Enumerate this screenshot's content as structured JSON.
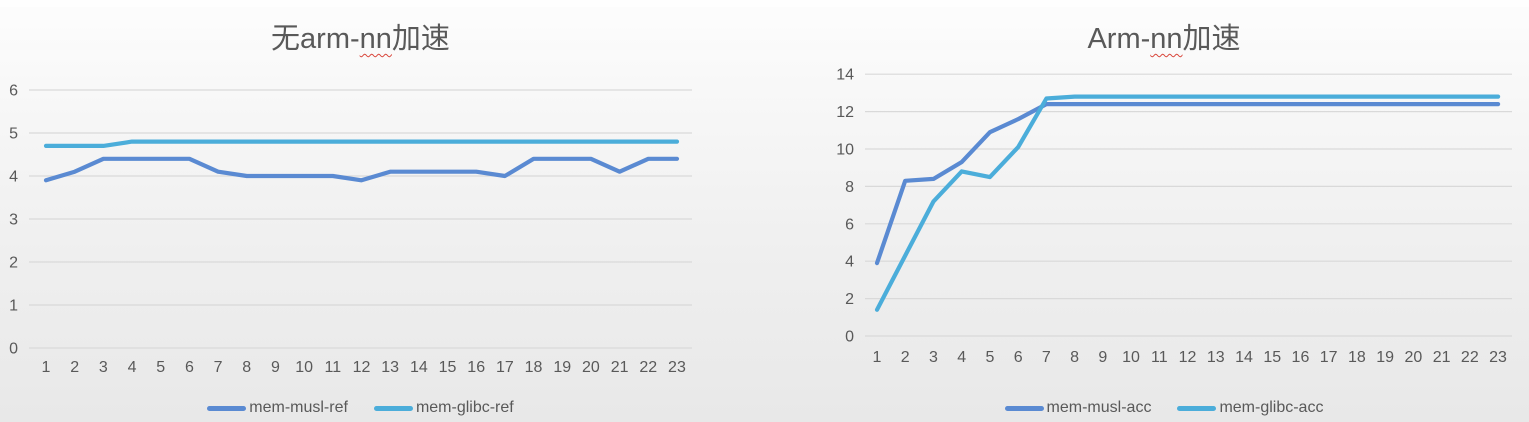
{
  "background": {
    "gradient_top": "#fdfdfd",
    "gradient_bottom": "#e8e8e8"
  },
  "text_color": "#595959",
  "grid_color": "#d9d9d9",
  "spellcheck_underline_color": "#d9453a",
  "chart_data": [
    {
      "type": "line",
      "title": "无arm-nn加速",
      "title_parts": {
        "prefix": "无arm-",
        "misspelled": "nn",
        "suffix": "加速"
      },
      "x_labels": [
        "1",
        "2",
        "3",
        "4",
        "5",
        "6",
        "7",
        "8",
        "9",
        "10",
        "11",
        "12",
        "13",
        "14",
        "15",
        "16",
        "17",
        "18",
        "19",
        "20",
        "21",
        "22",
        "23"
      ],
      "xlabel": "",
      "ylabel": "",
      "ylim": [
        0,
        6
      ],
      "ytick_step": 1,
      "ytick_labels": [
        "0",
        "1",
        "2",
        "3",
        "4",
        "5",
        "6"
      ],
      "grid": true,
      "legend_position": "bottom",
      "series": [
        {
          "name": "mem-musl-ref",
          "color": "#5a8ad2",
          "values": [
            3.9,
            4.1,
            4.4,
            4.4,
            4.4,
            4.4,
            4.1,
            4.0,
            4.0,
            4.0,
            4.0,
            3.9,
            4.1,
            4.1,
            4.1,
            4.1,
            4.0,
            4.4,
            4.4,
            4.4,
            4.1,
            4.4,
            4.4
          ]
        },
        {
          "name": "mem-glibc-ref",
          "color": "#4badda",
          "values": [
            4.7,
            4.7,
            4.7,
            4.8,
            4.8,
            4.8,
            4.8,
            4.8,
            4.8,
            4.8,
            4.8,
            4.8,
            4.8,
            4.8,
            4.8,
            4.8,
            4.8,
            4.8,
            4.8,
            4.8,
            4.8,
            4.8,
            4.8
          ]
        }
      ]
    },
    {
      "type": "line",
      "title": "Arm-nn加速",
      "title_parts": {
        "prefix": "Arm-",
        "misspelled": "nn",
        "suffix": "加速"
      },
      "x_labels": [
        "1",
        "2",
        "3",
        "4",
        "5",
        "6",
        "7",
        "8",
        "9",
        "10",
        "11",
        "12",
        "13",
        "14",
        "15",
        "16",
        "17",
        "18",
        "19",
        "20",
        "21",
        "22",
        "23"
      ],
      "xlabel": "",
      "ylabel": "",
      "ylim": [
        0,
        14
      ],
      "ytick_step": 2,
      "ytick_labels": [
        "0",
        "2",
        "4",
        "6",
        "8",
        "10",
        "12",
        "14"
      ],
      "grid": true,
      "legend_position": "bottom",
      "series": [
        {
          "name": "mem-musl-acc",
          "color": "#5a8ad2",
          "values": [
            3.9,
            8.3,
            8.4,
            9.3,
            10.9,
            11.6,
            12.4,
            12.4,
            12.4,
            12.4,
            12.4,
            12.4,
            12.4,
            12.4,
            12.4,
            12.4,
            12.4,
            12.4,
            12.4,
            12.4,
            12.4,
            12.4,
            12.4
          ]
        },
        {
          "name": "mem-glibc-acc",
          "color": "#4badda",
          "values": [
            1.4,
            4.3,
            7.2,
            8.8,
            8.5,
            10.1,
            12.7,
            12.8,
            12.8,
            12.8,
            12.8,
            12.8,
            12.8,
            12.8,
            12.8,
            12.8,
            12.8,
            12.8,
            12.8,
            12.8,
            12.8,
            12.8,
            12.8
          ]
        }
      ]
    }
  ]
}
